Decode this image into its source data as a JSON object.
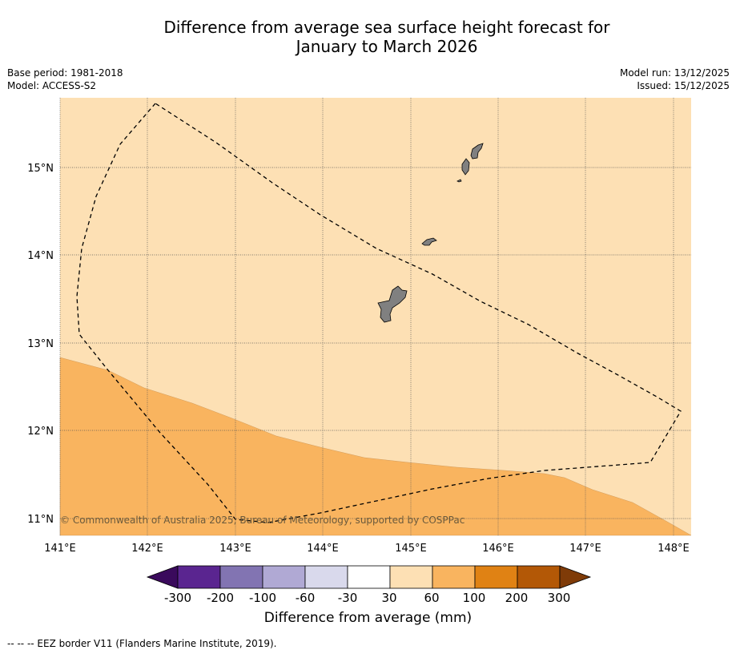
{
  "header": {
    "title_line1": "Difference from average sea surface height forecast for",
    "title_line2": "January to March 2026",
    "base_period": "Base period: 1981-2018",
    "model": "Model: ACCESS-S2",
    "model_run": "Model run: 13/12/2025",
    "issued": "Issued: 15/12/2025"
  },
  "map": {
    "lon_ticks": [
      "141°E",
      "142°E",
      "143°E",
      "144°E",
      "145°E",
      "146°E",
      "147°E",
      "148°E"
    ],
    "lat_ticks": [
      "15°N",
      "14°N",
      "13°N",
      "12°N",
      "11°N"
    ],
    "copyright": "© Commonwealth of Australia 2025, Bureau of Meteorology, supported by COSPPac",
    "colors": {
      "fill_30_60": "#fde0b4",
      "fill_60_100": "#f9b45f",
      "land": "#808080",
      "eez_line": "#000000"
    }
  },
  "colorbar": {
    "title": "Difference from average (mm)",
    "tick_labels": [
      "-300",
      "-200",
      "-100",
      "-60",
      "-30",
      "30",
      "60",
      "100",
      "200",
      "300"
    ],
    "colors": [
      "#3a0a5c",
      "#5a2590",
      "#8274b2",
      "#b0a9d4",
      "#d9d9ec",
      "#ffffff",
      "#fde0b4",
      "#f9b45f",
      "#e08214",
      "#b35806",
      "#7f3b08"
    ]
  },
  "footnote": "--  --  -- EEZ border V11 (Flanders Marine Institute, 2019)."
}
